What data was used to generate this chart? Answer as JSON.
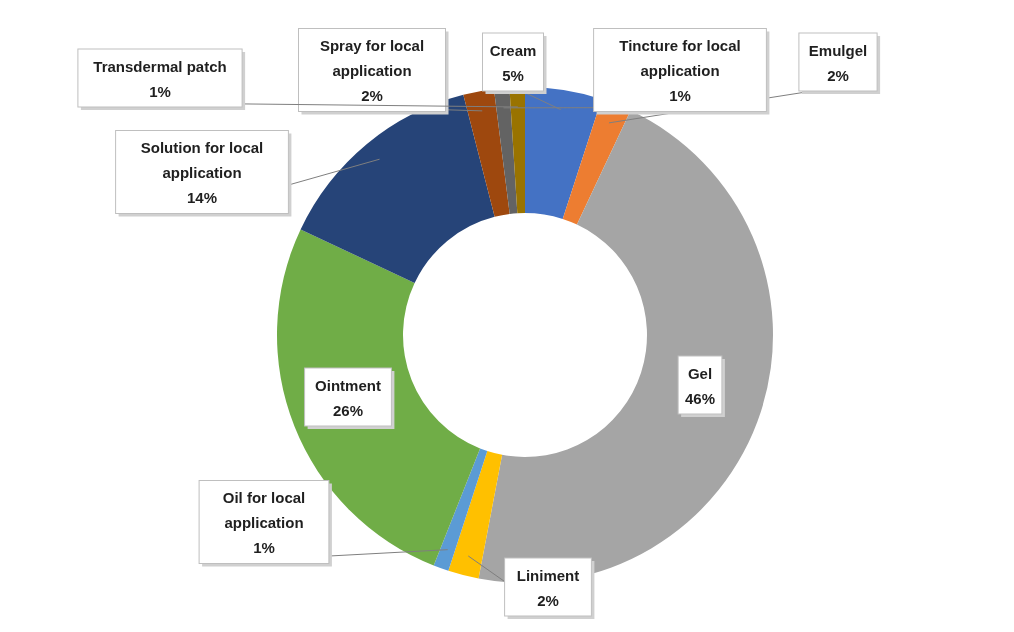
{
  "chart_data": {
    "type": "donut",
    "categories": [
      "Cream",
      "Emulgel",
      "Gel",
      "Liniment",
      "Oil for local application",
      "Ointment",
      "Solution for local application",
      "Spray for local application",
      "Tincture for local application",
      "Transdermal patch"
    ],
    "values": [
      5,
      2,
      46,
      2,
      1,
      26,
      14,
      2,
      1,
      1
    ],
    "colors": [
      "#4472c4",
      "#ed7d31",
      "#a5a5a5",
      "#ffc000",
      "#5b9bd5",
      "#70ad47",
      "#264478",
      "#9e480e",
      "#636363",
      "#997300"
    ],
    "value_labels": [
      "5%",
      "2%",
      "46%",
      "2%",
      "1%",
      "26%",
      "14%",
      "2%",
      "1%",
      "1%"
    ],
    "legend": false
  }
}
